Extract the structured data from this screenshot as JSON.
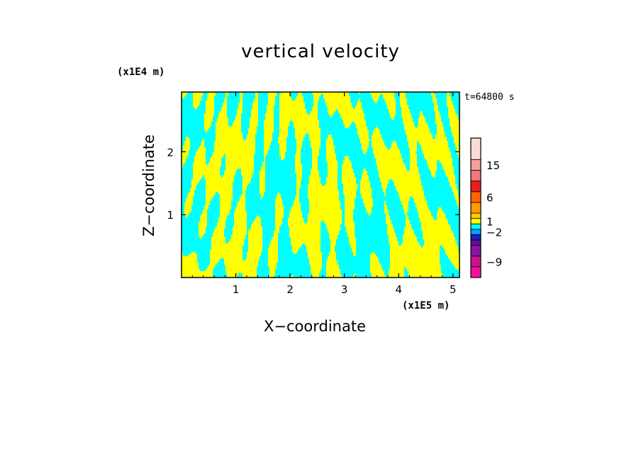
{
  "chart_data": {
    "type": "heatmap",
    "title": "vertical velocity",
    "xlabel": "X−coordinate",
    "ylabel": "Z−coordinate",
    "x_unit_label": "(x1E5 m)",
    "y_unit_label": "(x1E4 m)",
    "time_label": "t=64800 s",
    "x_ticks": [
      "1",
      "2",
      "3",
      "4",
      "5"
    ],
    "y_ticks": [
      "1",
      "2"
    ],
    "xlim": [
      0,
      5.12
    ],
    "ylim": [
      0,
      2.95
    ],
    "colorbar": {
      "labels": [
        {
          "value": 15,
          "text": "15"
        },
        {
          "value": 6,
          "text": "6"
        },
        {
          "value": 1,
          "text": "1"
        },
        {
          "value": -2,
          "text": "−2"
        },
        {
          "value": -9,
          "text": "−9"
        }
      ],
      "colors": [
        "#f0149b",
        "#c8148c",
        "#8c14a0",
        "#5a0fa0",
        "#1e1ebe",
        "#00a0ff",
        "#00ffff",
        "#ffff00",
        "#ffcc00",
        "#ff9900",
        "#ff6400",
        "#e61e1e",
        "#f07878",
        "#f5a0a0",
        "#fadcd7"
      ]
    },
    "dominant_colors": {
      "positive": "#ffff00",
      "negative": "#00ffff"
    }
  }
}
